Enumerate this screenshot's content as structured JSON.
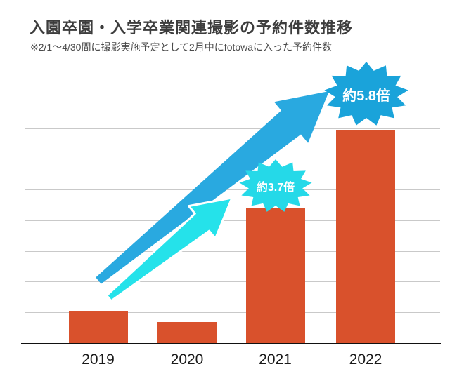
{
  "chart_data": {
    "type": "bar",
    "title": "入園卒園・入学卒業関連撮影の予約件数推移",
    "subtitle": "※2/1〜4/30間に撮影実施予定として2月中にfotowaに入った予約件数",
    "categories": [
      "2019",
      "2020",
      "2021",
      "2022"
    ],
    "values": [
      0.9,
      0.6,
      3.7,
      5.8
    ],
    "ylim": [
      0,
      7.5
    ],
    "grid": true,
    "legend": false,
    "bar_color": "#d9512c",
    "annotations": [
      {
        "label": "約3.7倍",
        "target_category": "2021",
        "shape": "starburst",
        "color": "#25d9e8"
      },
      {
        "label": "約5.8倍",
        "target_category": "2022",
        "shape": "starburst",
        "color": "#1aa3da"
      }
    ],
    "arrows": [
      {
        "name": "cyan-growth-arrow",
        "color": "#25e2ea",
        "from": "2019",
        "to": "約3.7倍"
      },
      {
        "name": "blue-growth-arrow",
        "color": "#29a9e0",
        "from": "2019",
        "to": "約5.8倍"
      }
    ]
  },
  "colors": {
    "grid": "#c9c9c9",
    "axis": "#111111",
    "title": "#3d3d3d",
    "subtitle": "#4a4a4a",
    "tick_label": "#1a1a1a",
    "background": "#ffffff"
  }
}
